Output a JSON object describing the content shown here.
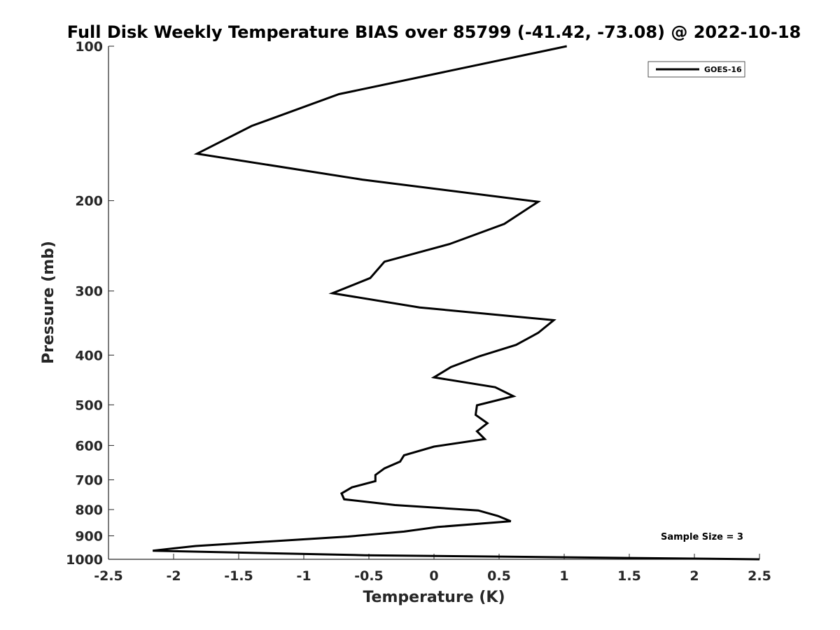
{
  "chart_data": {
    "type": "line",
    "title": "Full Disk Weekly Temperature BIAS over 85799 (-41.42, -73.08) @ 2022-10-18",
    "xlabel": "Temperature (K)",
    "ylabel": "Pressure (mb)",
    "xlim": [
      -2.5,
      2.5
    ],
    "ylim": [
      100,
      1000
    ],
    "y_scale": "log",
    "y_reversed": true,
    "xticks": [
      -2.5,
      -2,
      -1.5,
      -1,
      -0.5,
      0,
      0.5,
      1,
      1.5,
      2,
      2.5
    ],
    "xtick_labels": [
      "-2.5",
      "-2",
      "-1.5",
      "-1",
      "-0.5",
      "0",
      "0.5",
      "1",
      "1.5",
      "2",
      "2.5"
    ],
    "yticks": [
      100,
      200,
      300,
      400,
      500,
      600,
      700,
      800,
      900,
      1000
    ],
    "ytick_labels": [
      "100",
      "200",
      "300",
      "400",
      "500",
      "600",
      "700",
      "800",
      "900",
      "1000"
    ],
    "grid": false,
    "legend_position": "top-right",
    "series": [
      {
        "name": "GOES-16",
        "color": "#000000",
        "points": [
          [
            1.02,
            100
          ],
          [
            -0.73,
            124
          ],
          [
            -1.4,
            143
          ],
          [
            -1.82,
            162
          ],
          [
            -0.55,
            182
          ],
          [
            0.8,
            201
          ],
          [
            0.54,
            222
          ],
          [
            0.12,
            243
          ],
          [
            -0.38,
            263
          ],
          [
            -0.49,
            283
          ],
          [
            -0.78,
            303
          ],
          [
            -0.11,
            323
          ],
          [
            0.92,
            342
          ],
          [
            0.8,
            362
          ],
          [
            0.63,
            382
          ],
          [
            0.35,
            402
          ],
          [
            0.13,
            422
          ],
          [
            0.0,
            442
          ],
          [
            0.47,
            462
          ],
          [
            0.61,
            481
          ],
          [
            0.33,
            501
          ],
          [
            0.32,
            523
          ],
          [
            0.41,
            543
          ],
          [
            0.33,
            563
          ],
          [
            0.39,
            583
          ],
          [
            0.0,
            603
          ],
          [
            -0.23,
            627
          ],
          [
            -0.26,
            645
          ],
          [
            -0.38,
            665
          ],
          [
            -0.45,
            685
          ],
          [
            -0.45,
            704
          ],
          [
            -0.63,
            724
          ],
          [
            -0.71,
            744
          ],
          [
            -0.69,
            764
          ],
          [
            -0.3,
            784
          ],
          [
            0.34,
            803
          ],
          [
            0.49,
            823
          ],
          [
            0.59,
            843
          ],
          [
            0.03,
            865
          ],
          [
            -0.23,
            883
          ],
          [
            -0.66,
            903
          ],
          [
            -1.83,
            942
          ],
          [
            -2.16,
            962
          ],
          [
            -0.53,
            982
          ],
          [
            2.5,
            1000
          ]
        ]
      }
    ],
    "annotation": "Sample Size = 3"
  }
}
